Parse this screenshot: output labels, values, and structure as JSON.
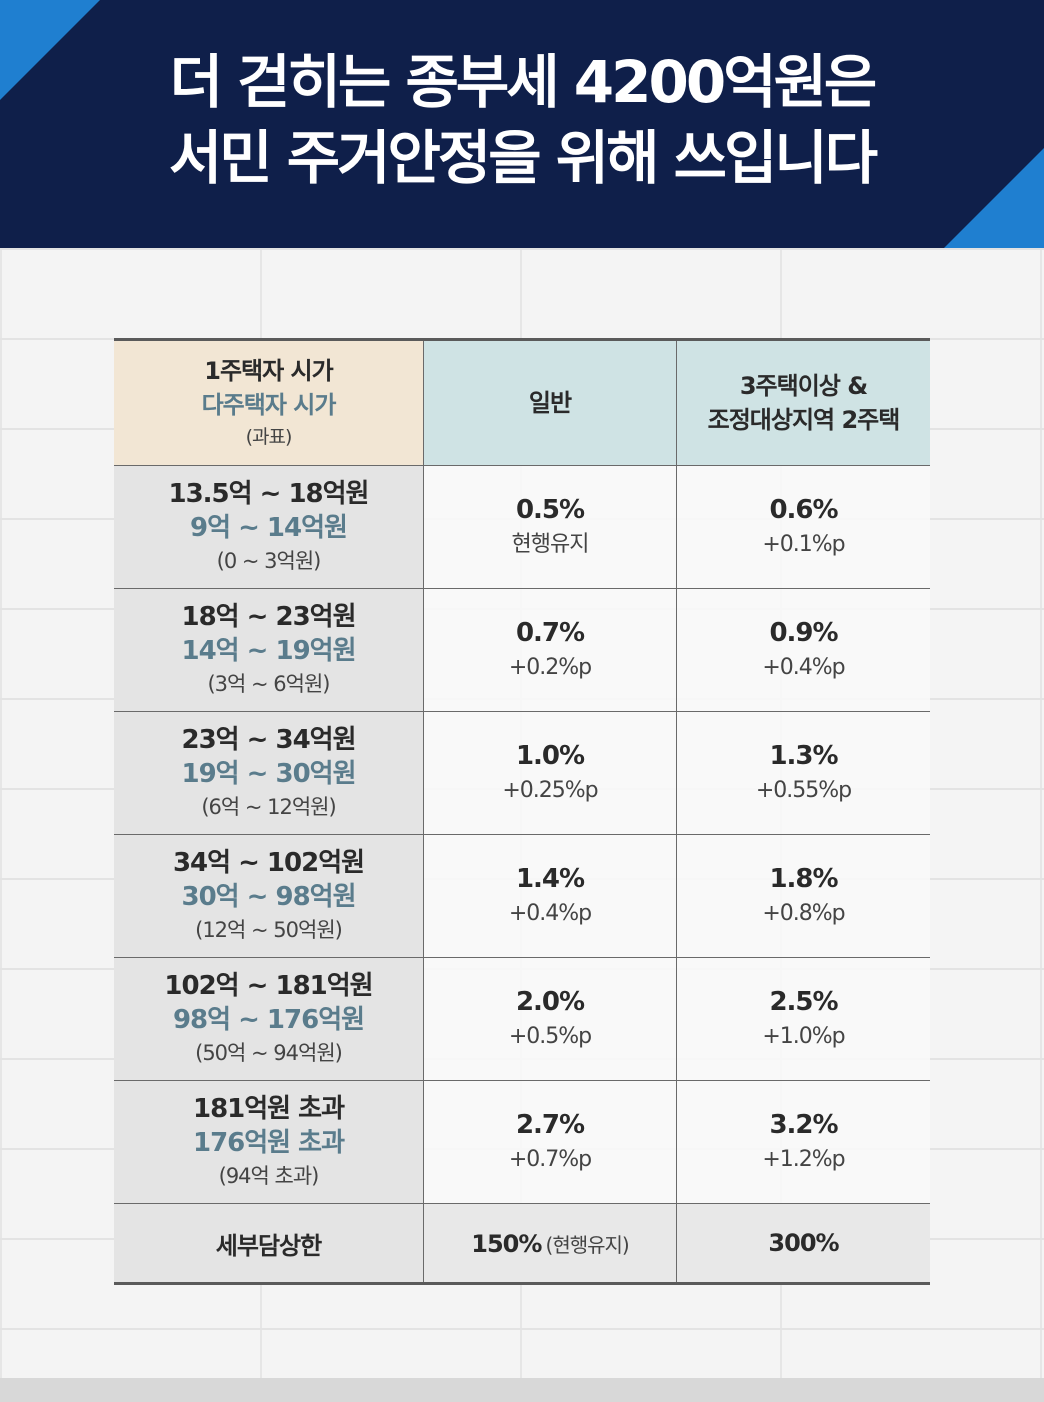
{
  "title": {
    "line1": "더 걷히는 종부세 4200억원은",
    "line2": "서민 주거안정을 위해 쓰입니다"
  },
  "table": {
    "header": {
      "col1_line1": "1주택자 시가",
      "col1_line2": "다주택자 시가",
      "col1_line3": "(과표)",
      "col2": "일반",
      "col3_line1": "3주택이상 &",
      "col3_line2": "조정대상지역 2주택"
    },
    "rows": [
      {
        "single": "13.5억 ~ 18억원",
        "multi": "9억 ~ 14억원",
        "base": "(0 ~ 3억원)",
        "g_rate": "0.5%",
        "g_delta": "현행유지",
        "m_rate": "0.6%",
        "m_delta": "+0.1%p"
      },
      {
        "single": "18억 ~ 23억원",
        "multi": "14억 ~ 19억원",
        "base": "(3억 ~ 6억원)",
        "g_rate": "0.7%",
        "g_delta": "+0.2%p",
        "m_rate": "0.9%",
        "m_delta": "+0.4%p"
      },
      {
        "single": "23억 ~ 34억원",
        "multi": "19억 ~ 30억원",
        "base": "(6억 ~ 12억원)",
        "g_rate": "1.0%",
        "g_delta": "+0.25%p",
        "m_rate": "1.3%",
        "m_delta": "+0.55%p"
      },
      {
        "single": "34억 ~ 102억원",
        "multi": "30억 ~ 98억원",
        "base": "(12억 ~ 50억원)",
        "g_rate": "1.4%",
        "g_delta": "+0.4%p",
        "m_rate": "1.8%",
        "m_delta": "+0.8%p"
      },
      {
        "single": "102억 ~ 181억원",
        "multi": "98억 ~ 176억원",
        "base": "(50억 ~ 94억원)",
        "g_rate": "2.0%",
        "g_delta": "+0.5%p",
        "m_rate": "2.5%",
        "m_delta": "+1.0%p"
      },
      {
        "single": "181억원 초과",
        "multi": "176억원 초과",
        "base": "(94억 초과)",
        "g_rate": "2.7%",
        "g_delta": "+0.7%p",
        "m_rate": "3.2%",
        "m_delta": "+1.2%p"
      }
    ],
    "limit": {
      "label": "세부담상한",
      "general": "150%",
      "general_note": "(현행유지)",
      "multi": "300%"
    }
  },
  "colors": {
    "header_bg": "#0f1f4a",
    "accent_blue": "#1f7fd0",
    "multi_text": "#5a7c8c",
    "header_cell_beige": "#f2e6d4",
    "header_cell_teal": "#cfe3e4"
  }
}
